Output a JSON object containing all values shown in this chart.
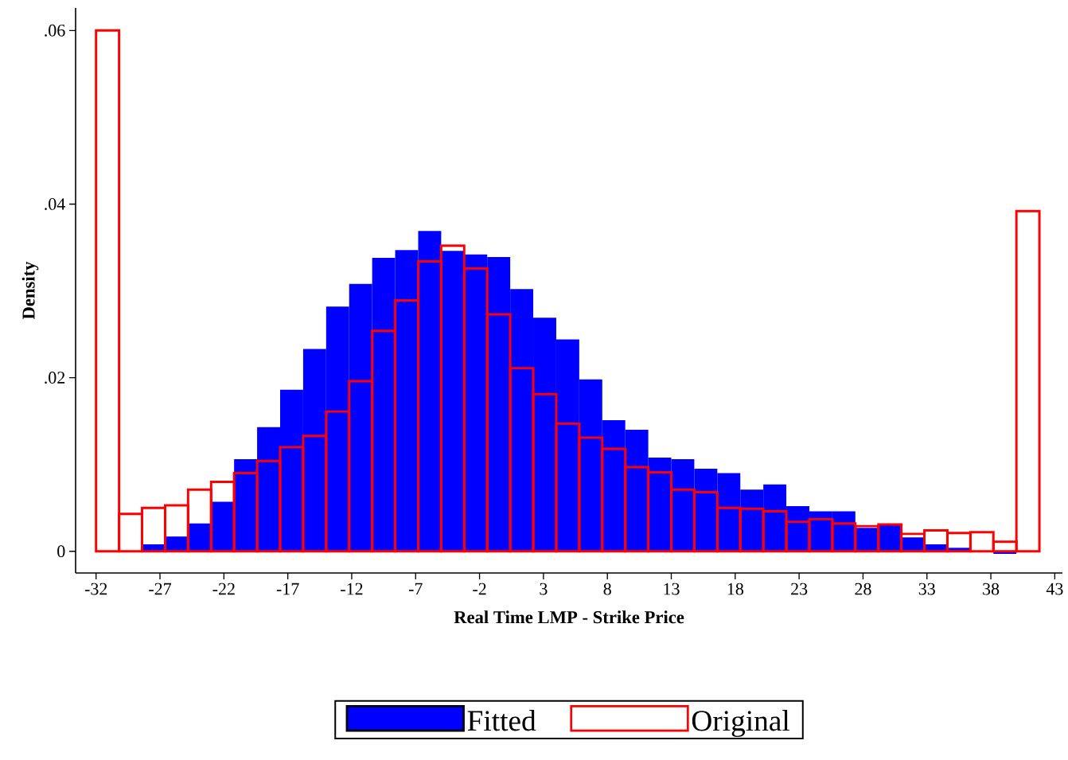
{
  "chart_data": {
    "type": "histogram",
    "xlabel": "Real Time LMP - Strike Price",
    "ylabel": "Density",
    "bins": [
      -32,
      -30.2,
      -28.4,
      -26.6,
      -24.8,
      -23,
      -21.2,
      -19.4,
      -17.6,
      -15.8,
      -14,
      -12.2,
      -10.4,
      -8.6,
      -6.8,
      -5,
      -3.2,
      -1.4,
      0.4,
      2.2,
      4,
      5.8,
      7.6,
      9.4,
      11.2,
      13,
      14.8,
      16.6,
      18.4,
      20.2,
      22,
      23.8,
      25.6,
      27.4,
      29.2,
      31,
      32.8,
      34.6,
      36.4,
      38.2,
      40,
      41.8
    ],
    "series": [
      {
        "name": "Fitted",
        "color": "#0000ff",
        "values": [
          -0.0001,
          0,
          0.0008,
          0.0017,
          0.0032,
          0.0057,
          0.0106,
          0.0143,
          0.0186,
          0.0233,
          0.0282,
          0.0308,
          0.0338,
          0.0347,
          0.0369,
          0.0346,
          0.0342,
          0.0339,
          0.0302,
          0.0269,
          0.0244,
          0.0198,
          0.0151,
          0.014,
          0.0108,
          0.0106,
          0.0095,
          0.009,
          0.0071,
          0.0077,
          0.0052,
          0.0046,
          0.0046,
          0.0027,
          0.003,
          0.0016,
          0.0008,
          0.0004,
          null,
          -0.0003,
          -0.0001
        ]
      },
      {
        "name": "Original",
        "color": "#ff0000",
        "values": [
          0.06,
          0.0043,
          0.005,
          0.0053,
          0.0071,
          0.008,
          0.009,
          0.0104,
          0.012,
          0.0133,
          0.0161,
          0.0196,
          0.0254,
          0.0289,
          0.0334,
          0.0352,
          0.0326,
          0.0273,
          0.0211,
          0.0181,
          0.0147,
          0.0131,
          0.0118,
          0.0097,
          0.0091,
          0.0071,
          0.0068,
          0.005,
          0.0049,
          0.0046,
          0.0034,
          0.0037,
          0.0032,
          0.0029,
          0.0031,
          0.002,
          0.0024,
          0.0021,
          0.0022,
          0.0011,
          0.0392
        ]
      }
    ],
    "xlim": [
      -33.6,
      43.6
    ],
    "ylim": [
      -0.0025,
      0.0626
    ],
    "xticks": [
      -32,
      -27,
      -22,
      -17,
      -12,
      -7,
      -2,
      3,
      8,
      13,
      18,
      23,
      28,
      33,
      38,
      43
    ],
    "yticks": [
      0,
      {
        "value": 0.02,
        "label": ".02"
      },
      {
        "value": 0.04,
        "label": ".04"
      },
      {
        "value": 0.06,
        "label": ".06"
      }
    ],
    "legend": "bottom",
    "grid": false
  }
}
